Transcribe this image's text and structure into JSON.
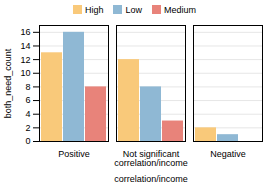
{
  "chart_data": {
    "type": "bar",
    "categories": [
      "Positive",
      "Not significant\ncorrelation/income",
      "Negative"
    ],
    "series": [
      {
        "name": "High",
        "color": "#F9C97A",
        "values": [
          13,
          12,
          2
        ]
      },
      {
        "name": "Low",
        "color": "#8FB8D4",
        "values": [
          16,
          8,
          1
        ]
      },
      {
        "name": "Medium",
        "color": "#E8837A",
        "values": [
          8,
          3,
          0
        ]
      }
    ],
    "xlabel": "correlation/income",
    "ylabel": "both_need_count",
    "ylim": [
      0,
      17
    ],
    "yticks": [
      0,
      2,
      4,
      6,
      8,
      10,
      12,
      14,
      16
    ],
    "grid": true,
    "legend": "top"
  }
}
